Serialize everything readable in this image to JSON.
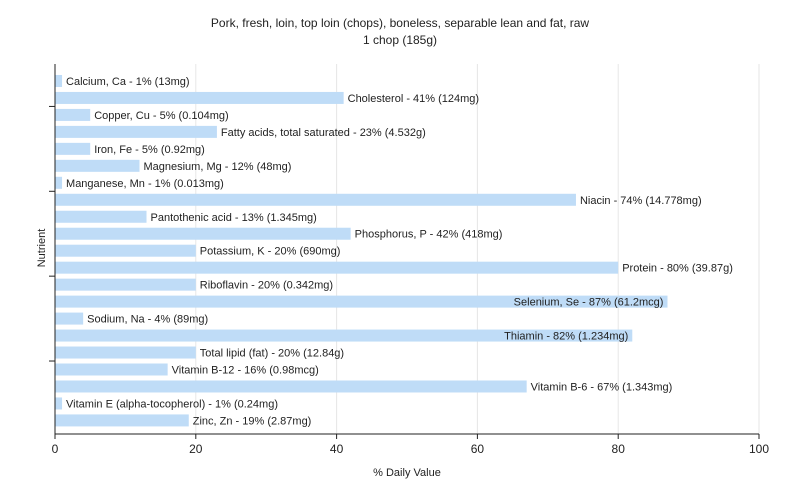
{
  "chart_data": {
    "type": "bar",
    "orientation": "horizontal",
    "title": "Pork, fresh, loin, top loin (chops), boneless, separable lean and fat, raw",
    "subtitle": "1 chop (185g)",
    "xlabel": "% Daily Value",
    "ylabel": "Nutrient",
    "xlim": [
      0,
      100
    ],
    "xticks": [
      0,
      20,
      40,
      60,
      80,
      100
    ],
    "grid": "vertical",
    "bar_color": "#bfdcf7",
    "grid_color": "#e6e6e6",
    "categories": [
      "Calcium, Ca",
      "Cholesterol",
      "Copper, Cu",
      "Fatty acids, total saturated",
      "Iron, Fe",
      "Magnesium, Mg",
      "Manganese, Mn",
      "Niacin",
      "Pantothenic acid",
      "Phosphorus, P",
      "Potassium, K",
      "Protein",
      "Riboflavin",
      "Selenium, Se",
      "Sodium, Na",
      "Thiamin",
      "Total lipid (fat)",
      "Vitamin B-12",
      "Vitamin B-6",
      "Vitamin E (alpha-tocopherol)",
      "Zinc, Zn"
    ],
    "values": [
      1,
      41,
      5,
      23,
      5,
      12,
      1,
      74,
      13,
      42,
      20,
      80,
      20,
      87,
      4,
      82,
      20,
      16,
      67,
      1,
      19
    ],
    "labels": [
      "Calcium, Ca - 1% (13mg)",
      "Cholesterol - 41% (124mg)",
      "Copper, Cu - 5% (0.104mg)",
      "Fatty acids, total saturated - 23% (4.532g)",
      "Iron, Fe - 5% (0.92mg)",
      "Magnesium, Mg - 12% (48mg)",
      "Manganese, Mn - 1% (0.013mg)",
      "Niacin - 74% (14.778mg)",
      "Pantothenic acid - 13% (1.345mg)",
      "Phosphorus, P - 42% (418mg)",
      "Potassium, K - 20% (690mg)",
      "Protein - 80% (39.87g)",
      "Riboflavin - 20% (0.342mg)",
      "Selenium, Se - 87% (61.2mcg)",
      "Sodium, Na - 4% (89mg)",
      "Thiamin - 82% (1.234mg)",
      "Total lipid (fat) - 20% (12.84g)",
      "Vitamin B-12 - 16% (0.98mcg)",
      "Vitamin B-6 - 67% (1.343mg)",
      "Vitamin E (alpha-tocopherol) - 1% (0.24mg)",
      "Zinc, Zn - 19% (2.87mg)"
    ],
    "label_inside": [
      false,
      false,
      false,
      false,
      false,
      false,
      false,
      false,
      false,
      false,
      false,
      false,
      false,
      true,
      false,
      true,
      false,
      false,
      false,
      false,
      false
    ]
  }
}
